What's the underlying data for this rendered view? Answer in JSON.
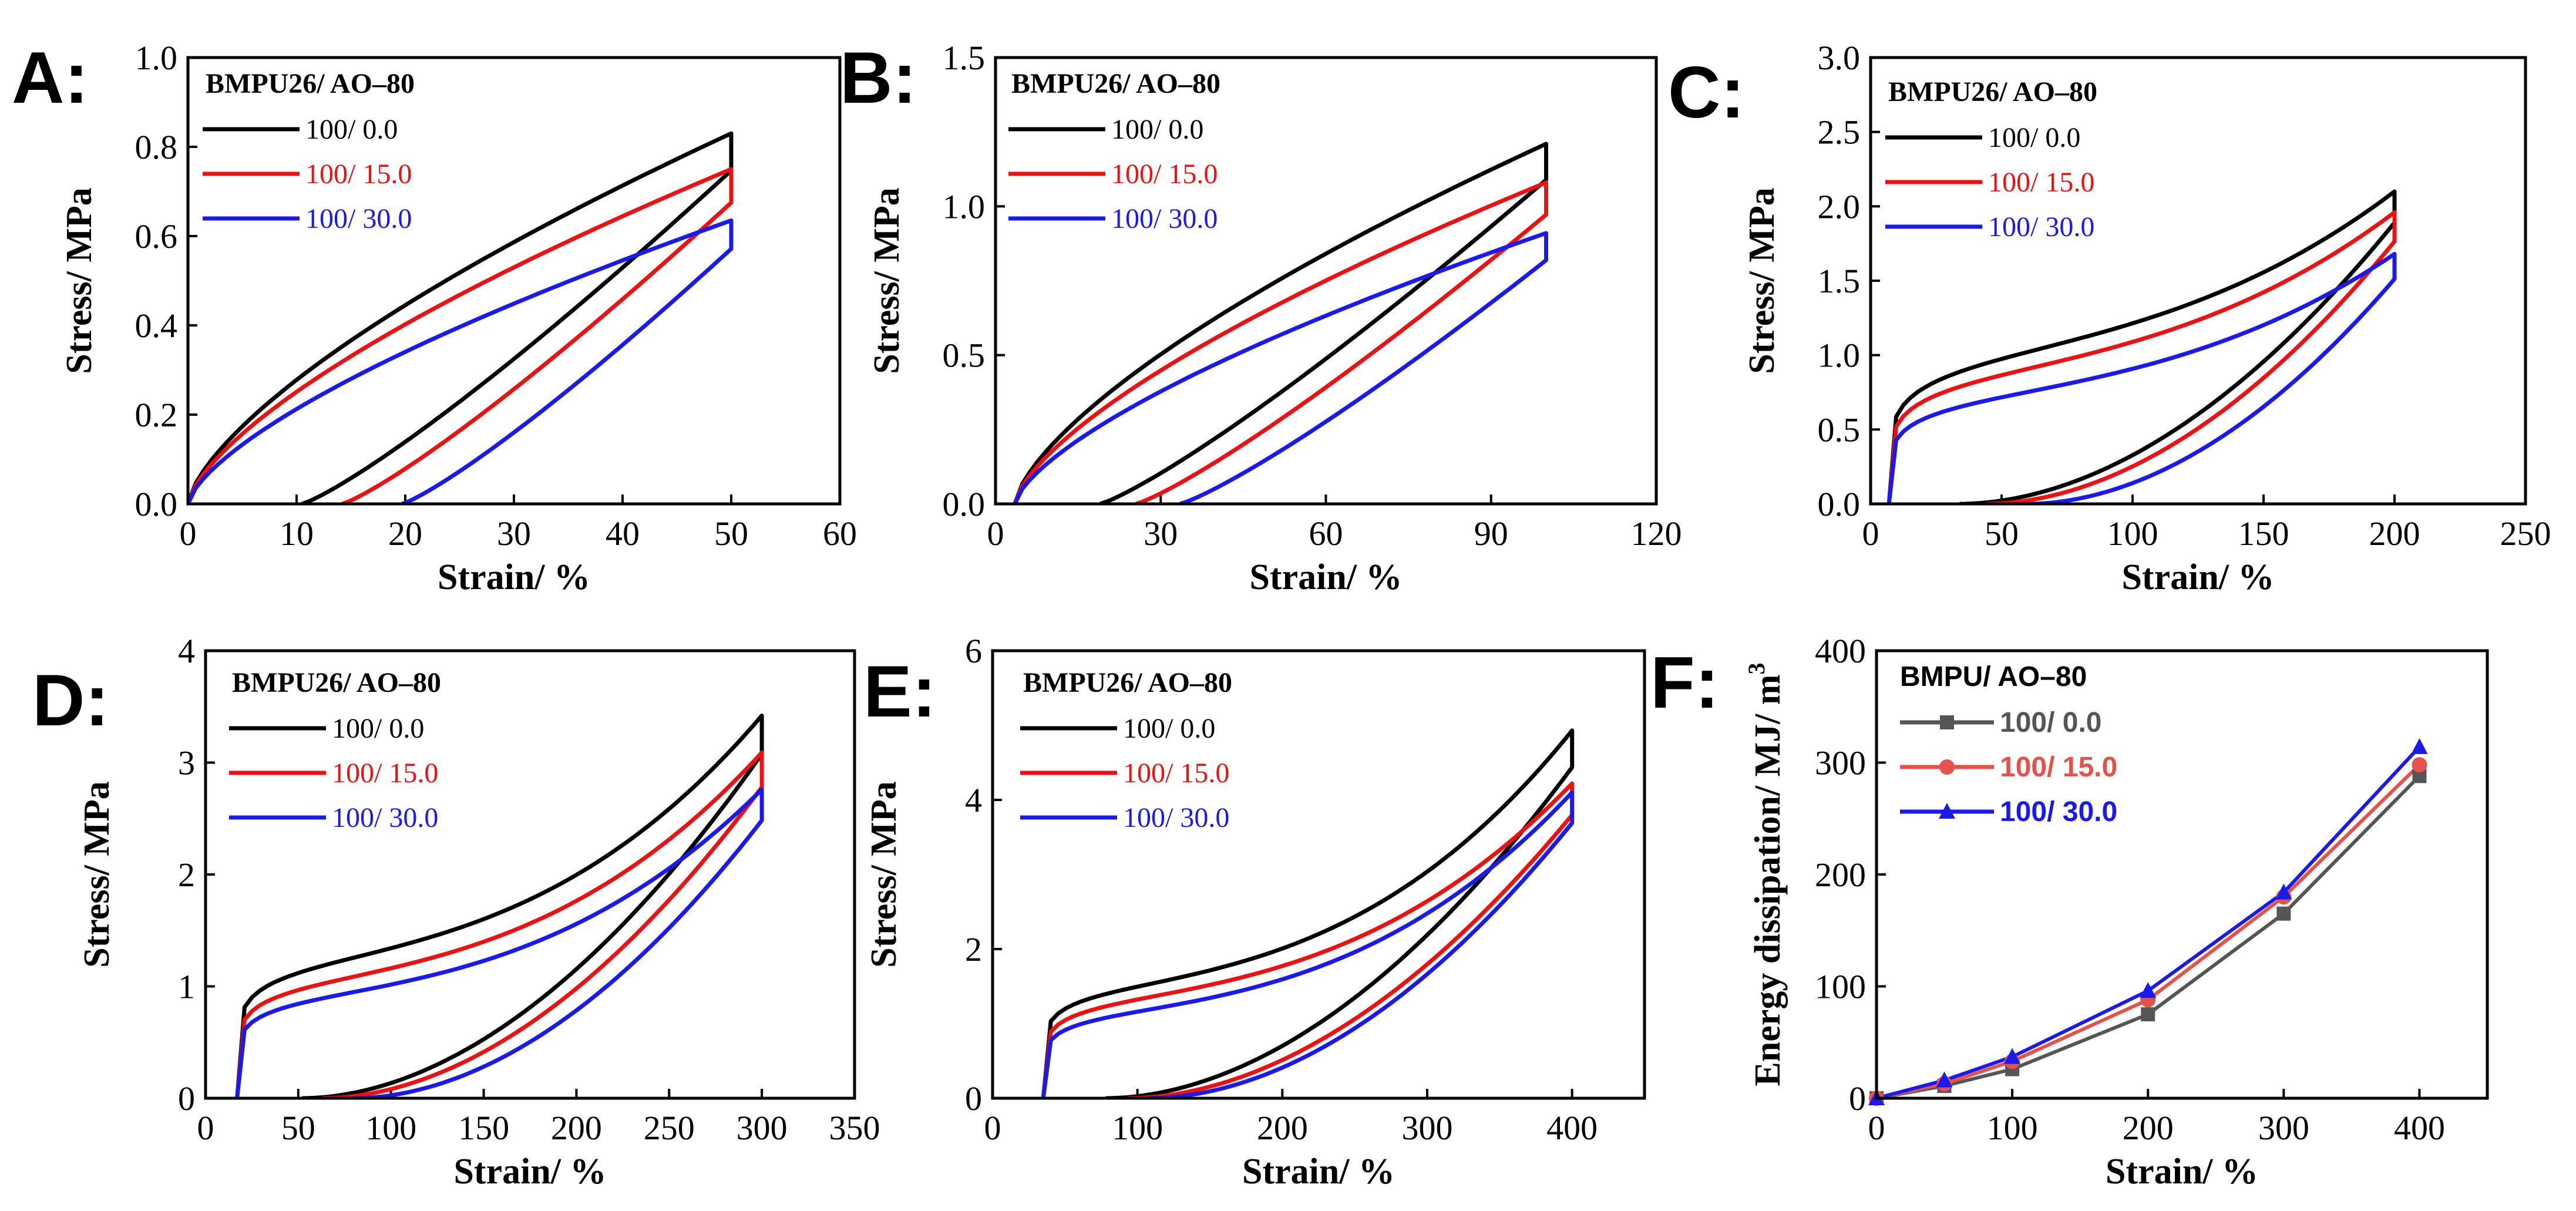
{
  "chart_data": [
    {
      "id": "A",
      "type": "line",
      "panel_label": "A:",
      "title": "",
      "xlabel": "Strain/ %",
      "ylabel": "Stress/ MPa",
      "xlim": [
        0,
        60
      ],
      "ylim": [
        0,
        1.0
      ],
      "xticks": [
        0,
        10,
        20,
        30,
        40,
        50,
        60
      ],
      "yticks": [
        0.0,
        0.2,
        0.4,
        0.6,
        0.8,
        1.0
      ],
      "xtick_labels": [
        "0",
        "10",
        "20",
        "30",
        "40",
        "50",
        "60"
      ],
      "ytick_labels": [
        "0.0",
        "0.2",
        "0.4",
        "0.6",
        "0.8",
        "1.0"
      ],
      "legend_title": "BMPU26/ AO–80",
      "legend_position": "top-left",
      "series": [
        {
          "name": "100/ 0.0",
          "color": "#000000",
          "max_strain": 50,
          "peak": 0.83,
          "residual": 10.5,
          "shape": "concave",
          "k": 1.0
        },
        {
          "name": "100/ 15.0",
          "color": "#ee1111",
          "max_strain": 50,
          "peak": 0.75,
          "residual": 14.2,
          "shape": "concave",
          "k": 1.0
        },
        {
          "name": "100/ 30.0",
          "color": "#1a1aee",
          "max_strain": 50,
          "peak": 0.635,
          "residual": 19.7,
          "shape": "concave",
          "k": 1.0
        }
      ]
    },
    {
      "id": "B",
      "type": "line",
      "panel_label": "B:",
      "title": "",
      "xlabel": "Strain/ %",
      "ylabel": "Stress/ MPa",
      "xlim": [
        0,
        120
      ],
      "ylim": [
        0,
        1.5
      ],
      "xticks": [
        0,
        30,
        60,
        90,
        120
      ],
      "yticks": [
        0.0,
        0.5,
        1.0,
        1.5
      ],
      "xtick_labels": [
        "0",
        "30",
        "60",
        "90",
        "120"
      ],
      "ytick_labels": [
        "0.0",
        "0.5",
        "1.0",
        "1.5"
      ],
      "legend_title": "BMPU26/ AO–80",
      "legend_position": "top-left",
      "series": [
        {
          "name": "100/ 0.0",
          "color": "#000000",
          "max_strain": 100,
          "peak": 1.21,
          "residual": 19.0,
          "start": 3.5,
          "shape": "concave",
          "k": 1.2
        },
        {
          "name": "100/ 15.0",
          "color": "#ee1111",
          "max_strain": 100,
          "peak": 1.08,
          "residual": 25.5,
          "start": 3.5,
          "shape": "concave",
          "k": 1.2
        },
        {
          "name": "100/ 30.0",
          "color": "#1a1aee",
          "max_strain": 100,
          "peak": 0.91,
          "residual": 33.5,
          "start": 3.5,
          "shape": "concave",
          "k": 1.2
        }
      ]
    },
    {
      "id": "C",
      "type": "line",
      "panel_label": "C:",
      "title": "",
      "xlabel": "Strain/ %",
      "ylabel": "Stress/ MPa",
      "xlim": [
        0,
        250
      ],
      "ylim": [
        0,
        3.0
      ],
      "xticks": [
        0,
        50,
        100,
        150,
        200,
        250
      ],
      "yticks": [
        0.0,
        0.5,
        1.0,
        1.5,
        2.0,
        2.5,
        3.0
      ],
      "xtick_labels": [
        "0",
        "50",
        "100",
        "150",
        "200",
        "250"
      ],
      "ytick_labels": [
        "0.0",
        "0.5",
        "1.0",
        "1.5",
        "2.0",
        "2.5",
        "3.0"
      ],
      "legend_title": "BMPU26/ AO–80",
      "legend_position": "top-left",
      "series": [
        {
          "name": "100/ 0.0",
          "color": "#000000",
          "max_strain": 200,
          "peak": 2.1,
          "residual": 34,
          "start": 7,
          "shape": "sigmoid",
          "a": 0.6,
          "b": 0.18
        },
        {
          "name": "100/ 15.0",
          "color": "#ee1111",
          "max_strain": 200,
          "peak": 1.96,
          "residual": 44,
          "start": 7,
          "shape": "sigmoid",
          "a": 0.57,
          "b": 0.18
        },
        {
          "name": "100/ 30.0",
          "color": "#1a1aee",
          "max_strain": 200,
          "peak": 1.68,
          "residual": 60,
          "start": 7,
          "shape": "sigmoid",
          "a": 0.55,
          "b": 0.18
        }
      ]
    },
    {
      "id": "D",
      "type": "line",
      "panel_label": "D:",
      "title": "",
      "xlabel": "Strain/ %",
      "ylabel": "Stress/ MPa",
      "xlim": [
        0,
        350
      ],
      "ylim": [
        0,
        4
      ],
      "xticks": [
        0,
        50,
        100,
        150,
        200,
        250,
        300,
        350
      ],
      "yticks": [
        0,
        1,
        2,
        3,
        4
      ],
      "xtick_labels": [
        "0",
        "50",
        "100",
        "150",
        "200",
        "250",
        "300",
        "350"
      ],
      "ytick_labels": [
        "0",
        "1",
        "2",
        "3",
        "4"
      ],
      "legend_title": "BMPU26/ AO–80",
      "legend_position": "top-left",
      "series": [
        {
          "name": "100/ 0.0",
          "color": "#000000",
          "max_strain": 300,
          "peak": 3.42,
          "residual": 52,
          "start": 17,
          "shape": "sigmoid",
          "a": 0.45,
          "b": 0.15
        },
        {
          "name": "100/ 15.0",
          "color": "#ee1111",
          "max_strain": 300,
          "peak": 3.09,
          "residual": 63,
          "start": 17,
          "shape": "sigmoid",
          "a": 0.43,
          "b": 0.15
        },
        {
          "name": "100/ 30.0",
          "color": "#1a1aee",
          "max_strain": 300,
          "peak": 2.76,
          "residual": 80,
          "start": 17,
          "shape": "sigmoid",
          "a": 0.42,
          "b": 0.15
        }
      ]
    },
    {
      "id": "E",
      "type": "line",
      "panel_label": "E:",
      "title": "",
      "xlabel": "Strain/ %",
      "ylabel": "Stress/ MPa",
      "xlim": [
        0,
        450
      ],
      "ylim": [
        0,
        6
      ],
      "xticks": [
        0,
        100,
        200,
        300,
        400
      ],
      "yticks": [
        0,
        2,
        4,
        6
      ],
      "xtick_labels": [
        "0",
        "100",
        "200",
        "300",
        "400"
      ],
      "ytick_labels": [
        "0",
        "2",
        "4",
        "6"
      ],
      "legend_title": "BMPU26/ AO–80",
      "legend_position": "top-left",
      "series": [
        {
          "name": "100/ 0.0",
          "color": "#000000",
          "max_strain": 400,
          "peak": 4.93,
          "residual": 78,
          "start": 35,
          "shape": "sigmoid",
          "a": 0.38,
          "b": 0.14
        },
        {
          "name": "100/ 15.0",
          "color": "#ee1111",
          "max_strain": 400,
          "peak": 4.22,
          "residual": 93,
          "start": 35,
          "shape": "sigmoid",
          "a": 0.4,
          "b": 0.15
        },
        {
          "name": "100/ 30.0",
          "color": "#1a1aee",
          "max_strain": 400,
          "peak": 4.1,
          "residual": 108,
          "start": 35,
          "shape": "sigmoid",
          "a": 0.36,
          "b": 0.15
        }
      ]
    },
    {
      "id": "F",
      "type": "line",
      "panel_label": "F:",
      "title": "",
      "xlabel": "Strain/ %",
      "ylabel": "Energy dissipation/ MJ/ m",
      "ylabel_sup": "3",
      "xlim": [
        0,
        450
      ],
      "ylim": [
        0,
        400
      ],
      "xticks": [
        0,
        100,
        200,
        300,
        400
      ],
      "yticks": [
        0,
        100,
        200,
        300,
        400
      ],
      "xtick_labels": [
        "0",
        "100",
        "200",
        "300",
        "400"
      ],
      "ytick_labels": [
        "0",
        "100",
        "200",
        "300",
        "400"
      ],
      "legend_title": "BMPU/ AO–80",
      "legend_position": "top-left",
      "x": [
        0,
        50,
        100,
        200,
        300,
        400
      ],
      "series": [
        {
          "name": "100/ 0.0",
          "color": "#555555",
          "marker": "square",
          "values": [
            0,
            11,
            26,
            75,
            165,
            288
          ]
        },
        {
          "name": "100/ 15.0",
          "color": "#e8504a",
          "marker": "circle",
          "values": [
            0,
            13,
            33,
            88,
            180,
            298
          ]
        },
        {
          "name": "100/ 30.0",
          "color": "#1a1aee",
          "marker": "triangle",
          "values": [
            0,
            16,
            37,
            96,
            184,
            314
          ]
        }
      ]
    }
  ]
}
